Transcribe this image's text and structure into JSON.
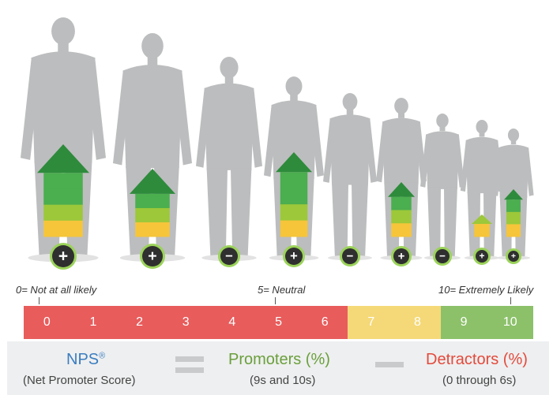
{
  "colors": {
    "silhouette": "#bcbdbe",
    "detractor_red": "#e85c5c",
    "passive_yellow": "#f5d978",
    "promoter_green": "#8cc16a",
    "arrow_dark_green": "#2e8b3c",
    "arrow_mid_green": "#4bae4f",
    "arrow_light_green": "#9cc83a",
    "arrow_yellow": "#f6c53a",
    "nps_blue": "#3a7dc0",
    "promoters_text": "#6a9f3c",
    "detractors_text": "#e34a3c",
    "formula_bg": "#eeeff0"
  },
  "people": [
    {
      "badge": "+",
      "badge_icon": "plus-badge-icon",
      "arrow_icon": "tall-green-arrow-icon"
    },
    {
      "badge": "+",
      "badge_icon": "plus-badge-icon",
      "arrow_icon": "green-arrow-icon"
    },
    {
      "badge": "−",
      "badge_icon": "minus-badge-icon",
      "arrow_icon": ""
    },
    {
      "badge": "+",
      "badge_icon": "plus-badge-icon",
      "arrow_icon": "tall-green-arrow-icon"
    },
    {
      "badge": "−",
      "badge_icon": "minus-badge-icon",
      "arrow_icon": ""
    },
    {
      "badge": "+",
      "badge_icon": "plus-badge-icon",
      "arrow_icon": "green-arrow-icon"
    },
    {
      "badge": "−",
      "badge_icon": "minus-badge-icon",
      "arrow_icon": ""
    },
    {
      "badge": "+",
      "badge_icon": "plus-badge-icon",
      "arrow_icon": "small-arrow-icon"
    },
    {
      "badge": "+",
      "badge_icon": "plus-badge-icon",
      "arrow_icon": "green-arrow-icon"
    }
  ],
  "scale": {
    "left_label": "0= Not at all likely",
    "mid_label": "5= Neutral",
    "right_label": "10= Extremely Likely",
    "values": [
      "0",
      "1",
      "2",
      "3",
      "4",
      "5",
      "6",
      "7",
      "8",
      "9",
      "10"
    ],
    "groups": [
      "detractor",
      "detractor",
      "detractor",
      "detractor",
      "detractor",
      "detractor",
      "detractor",
      "passive",
      "passive",
      "promoter",
      "promoter"
    ]
  },
  "formula": {
    "nps_title": "NPS",
    "nps_mark": "®",
    "nps_sub": "(Net Promoter Score)",
    "equals_icon": "equals-icon",
    "promoters_title": "Promoters (%)",
    "promoters_sub": "(9s and 10s)",
    "minus_icon": "minus-icon",
    "detractors_title": "Detractors (%)",
    "detractors_sub": "(0 through 6s)"
  }
}
